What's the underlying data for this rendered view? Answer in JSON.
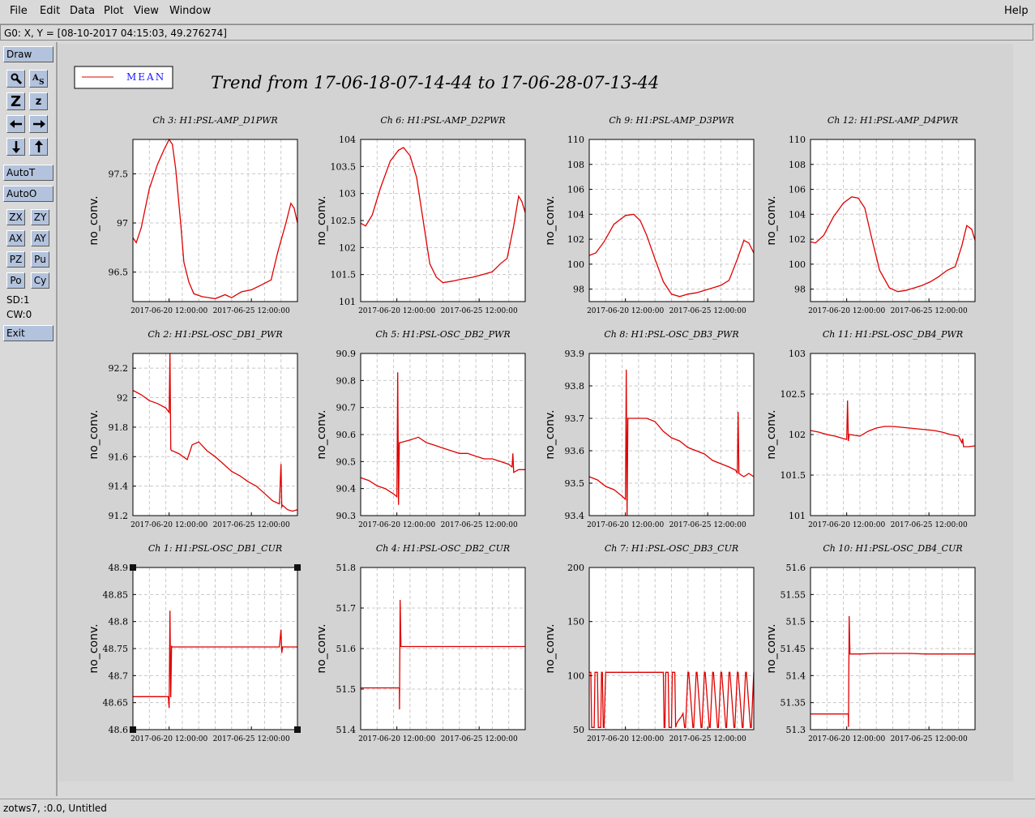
{
  "menu": {
    "file": "File",
    "edit": "Edit",
    "data": "Data",
    "plot": "Plot",
    "view": "View",
    "window": "Window",
    "help": "Help"
  },
  "coord_readout": "G0: X, Y = [08-10-2017 04:15:03, 49.276274]",
  "toolbar": {
    "draw": "Draw",
    "auto_t": "AutoT",
    "auto_o": "AutoO",
    "zx": "ZX",
    "zy": "ZY",
    "ax": "AX",
    "ay": "AY",
    "pz": "PZ",
    "pu": "Pu",
    "po": "Po",
    "cy": "Cy",
    "sd": "SD:1",
    "cw": "CW:0",
    "exit": "Exit",
    "zoom_big": "Z",
    "zoom_small": "z"
  },
  "status": "zotws7, :0.0, Untitled",
  "legend": {
    "label": "MEAN",
    "color": "#e00000"
  },
  "trend_title": "Trend from 17-06-18-07-14-44 to 17-06-28-07-13-44",
  "colors": {
    "series": "#e00000",
    "plot_bg": "#ffffff",
    "panel_bg": "#d3d3d3",
    "grid": "#c8c8c8"
  },
  "chart_data": [
    {
      "type": "line",
      "title": "Ch 3: H1:PSL-AMP_D1PWR",
      "ylabel": "no_conv.",
      "ylim": [
        96.2,
        97.85
      ],
      "yticks": [
        96.5,
        97,
        97.5
      ],
      "ytick_labels": [
        "96.5",
        "97",
        "97.5"
      ],
      "xlim": [
        0,
        10
      ],
      "xtick_labels": [
        "2017-06-20 12:00:00",
        "2017-06-25 12:00:00"
      ],
      "xticks": [
        2.2,
        7.2
      ],
      "grid": true,
      "x": [
        0,
        0.2,
        0.5,
        1.0,
        1.5,
        1.9,
        2.2,
        2.4,
        2.6,
        2.9,
        3.1,
        3.4,
        3.7,
        4.2,
        5.0,
        5.6,
        6.0,
        6.6,
        7.2,
        7.7,
        8.4,
        8.8,
        9.3,
        9.6,
        9.8,
        10
      ],
      "values": [
        96.85,
        96.8,
        96.95,
        97.35,
        97.6,
        97.75,
        97.85,
        97.8,
        97.55,
        97.0,
        96.6,
        96.4,
        96.28,
        96.25,
        96.23,
        96.27,
        96.24,
        96.3,
        96.32,
        96.36,
        96.42,
        96.7,
        97.0,
        97.2,
        97.15,
        97.0
      ]
    },
    {
      "type": "line",
      "title": "Ch 6: H1:PSL-AMP_D2PWR",
      "ylabel": "no_conv.",
      "ylim": [
        101,
        104
      ],
      "yticks": [
        101,
        101.5,
        102,
        102.5,
        103,
        103.5,
        104
      ],
      "ytick_labels": [
        "101",
        "101.5",
        "102",
        "102.5",
        "103",
        "103.5",
        "104"
      ],
      "xlim": [
        0,
        10
      ],
      "xtick_labels": [
        "2017-06-20 12:00:00",
        "2017-06-25 12:00:00"
      ],
      "xticks": [
        2.2,
        7.2
      ],
      "grid": true,
      "x": [
        0,
        0.3,
        0.7,
        1.2,
        1.8,
        2.3,
        2.6,
        3.0,
        3.4,
        3.8,
        4.2,
        4.6,
        5.0,
        5.6,
        6.2,
        6.8,
        7.4,
        8.0,
        8.5,
        8.9,
        9.3,
        9.6,
        9.8,
        10
      ],
      "values": [
        102.45,
        102.4,
        102.6,
        103.1,
        103.6,
        103.8,
        103.85,
        103.7,
        103.3,
        102.5,
        101.7,
        101.45,
        101.35,
        101.38,
        101.42,
        101.45,
        101.5,
        101.55,
        101.7,
        101.8,
        102.4,
        102.95,
        102.85,
        102.65
      ]
    },
    {
      "type": "line",
      "title": "Ch 9: H1:PSL-AMP_D3PWR",
      "ylabel": "no_conv.",
      "ylim": [
        97,
        110
      ],
      "yticks": [
        98,
        100,
        102,
        104,
        106,
        108,
        110
      ],
      "ytick_labels": [
        "98",
        "100",
        "102",
        "104",
        "106",
        "108",
        "110"
      ],
      "xlim": [
        0,
        10
      ],
      "xtick_labels": [
        "2017-06-20 12:00:00",
        "2017-06-25 12:00:00"
      ],
      "xticks": [
        2.2,
        7.2
      ],
      "grid": true,
      "x": [
        0,
        0.4,
        0.9,
        1.5,
        2.2,
        2.7,
        3.1,
        3.5,
        4.0,
        4.5,
        5.0,
        5.5,
        6.0,
        6.5,
        7.0,
        7.5,
        8.0,
        8.5,
        9.0,
        9.4,
        9.7,
        10
      ],
      "values": [
        100.7,
        100.9,
        101.8,
        103.2,
        103.9,
        104.0,
        103.5,
        102.3,
        100.4,
        98.6,
        97.6,
        97.4,
        97.6,
        97.7,
        97.9,
        98.1,
        98.3,
        98.7,
        100.4,
        101.9,
        101.7,
        100.9
      ]
    },
    {
      "type": "line",
      "title": "Ch 12: H1:PSL-AMP_D4PWR",
      "ylabel": "no_conv.",
      "ylim": [
        97,
        110
      ],
      "yticks": [
        98,
        100,
        102,
        104,
        106,
        108,
        110
      ],
      "ytick_labels": [
        "98",
        "100",
        "102",
        "104",
        "106",
        "108",
        "110"
      ],
      "xlim": [
        0,
        10
      ],
      "xtick_labels": [
        "2017-06-20 12:00:00",
        "2017-06-25 12:00:00"
      ],
      "xticks": [
        2.2,
        7.2
      ],
      "grid": true,
      "x": [
        0,
        0.3,
        0.8,
        1.4,
        2.0,
        2.5,
        2.9,
        3.3,
        3.7,
        4.2,
        4.8,
        5.3,
        5.8,
        6.3,
        6.8,
        7.3,
        7.8,
        8.3,
        8.8,
        9.2,
        9.5,
        9.8,
        10
      ],
      "values": [
        101.8,
        101.7,
        102.3,
        103.8,
        104.9,
        105.4,
        105.3,
        104.5,
        102.2,
        99.5,
        98.1,
        97.8,
        97.9,
        98.1,
        98.3,
        98.6,
        99.0,
        99.5,
        99.8,
        101.5,
        103.1,
        102.8,
        101.9
      ]
    },
    {
      "type": "line",
      "title": "Ch 2: H1:PSL-OSC_DB1_PWR",
      "ylabel": "no_conv.",
      "ylim": [
        91.2,
        92.3
      ],
      "yticks": [
        91.2,
        91.4,
        91.6,
        91.8,
        92,
        92.2
      ],
      "ytick_labels": [
        "91.2",
        "91.4",
        "91.6",
        "91.8",
        "92",
        "92.2"
      ],
      "xlim": [
        0,
        10
      ],
      "xtick_labels": [
        "2017-06-20 12:00:00",
        "2017-06-25 12:00:00"
      ],
      "xticks": [
        2.2,
        7.2
      ],
      "grid": true,
      "x": [
        0,
        0.5,
        1.0,
        1.5,
        2.0,
        2.2,
        2.25,
        2.3,
        2.35,
        2.4,
        2.8,
        3.3,
        3.6,
        4.0,
        4.5,
        5.0,
        5.5,
        6.0,
        6.5,
        7.0,
        7.5,
        8.0,
        8.5,
        8.9,
        9.0,
        9.05,
        9.1,
        9.4,
        9.7,
        10
      ],
      "values": [
        92.05,
        92.02,
        91.98,
        91.96,
        91.93,
        91.9,
        92.3,
        91.65,
        91.64,
        91.64,
        91.62,
        91.58,
        91.68,
        91.7,
        91.64,
        91.6,
        91.55,
        91.5,
        91.47,
        91.43,
        91.4,
        91.35,
        91.3,
        91.28,
        91.55,
        91.26,
        91.27,
        91.24,
        91.23,
        91.24
      ]
    },
    {
      "type": "line",
      "title": "Ch 5: H1:PSL-OSC_DB2_PWR",
      "ylabel": "no_conv.",
      "ylim": [
        90.3,
        90.9
      ],
      "yticks": [
        90.3,
        90.4,
        90.5,
        90.6,
        90.7,
        90.8,
        90.9
      ],
      "ytick_labels": [
        "90.3",
        "90.4",
        "90.5",
        "90.6",
        "90.7",
        "90.8",
        "90.9"
      ],
      "xlim": [
        0,
        10
      ],
      "xtick_labels": [
        "2017-06-20 12:00:00",
        "2017-06-25 12:00:00"
      ],
      "xticks": [
        2.2,
        7.2
      ],
      "grid": true,
      "x": [
        0,
        0.5,
        1.0,
        1.5,
        2.0,
        2.2,
        2.25,
        2.3,
        2.35,
        2.4,
        3.0,
        3.5,
        4.0,
        4.5,
        5.0,
        5.5,
        6.0,
        6.5,
        7.0,
        7.5,
        8.0,
        8.5,
        9.0,
        9.2,
        9.25,
        9.3,
        9.6,
        10
      ],
      "values": [
        90.44,
        90.43,
        90.41,
        90.4,
        90.38,
        90.37,
        90.83,
        90.34,
        90.57,
        90.57,
        90.58,
        90.59,
        90.57,
        90.56,
        90.55,
        90.54,
        90.53,
        90.53,
        90.52,
        90.51,
        90.51,
        90.5,
        90.49,
        90.48,
        90.53,
        90.46,
        90.47,
        90.47
      ]
    },
    {
      "type": "line",
      "title": "Ch 8: H1:PSL-OSC_DB3_PWR",
      "ylabel": "no_conv.",
      "ylim": [
        93.4,
        93.9
      ],
      "yticks": [
        93.4,
        93.5,
        93.6,
        93.7,
        93.8,
        93.9
      ],
      "ytick_labels": [
        "93.4",
        "93.5",
        "93.6",
        "93.7",
        "93.8",
        "93.9"
      ],
      "xlim": [
        0,
        10
      ],
      "xtick_labels": [
        "2017-06-20 12:00:00",
        "2017-06-25 12:00:00"
      ],
      "xticks": [
        2.2,
        7.2
      ],
      "grid": true,
      "x": [
        0,
        0.5,
        1.0,
        1.5,
        2.0,
        2.2,
        2.25,
        2.3,
        2.35,
        2.4,
        3.0,
        3.5,
        4.0,
        4.5,
        5.0,
        5.5,
        6.0,
        6.5,
        7.0,
        7.5,
        8.0,
        8.5,
        8.9,
        9.0,
        9.05,
        9.1,
        9.4,
        9.7,
        10
      ],
      "values": [
        93.52,
        93.51,
        93.49,
        93.48,
        93.46,
        93.45,
        93.85,
        93.4,
        93.7,
        93.7,
        93.7,
        93.7,
        93.69,
        93.66,
        93.64,
        93.63,
        93.61,
        93.6,
        93.59,
        93.57,
        93.56,
        93.55,
        93.54,
        93.53,
        93.72,
        93.53,
        93.52,
        93.53,
        93.52
      ]
    },
    {
      "type": "line",
      "title": "Ch 11: H1:PSL-OSC_DB4_PWR",
      "ylabel": "no_conv.",
      "ylim": [
        101,
        103
      ],
      "yticks": [
        101,
        101.5,
        102,
        102.5,
        103
      ],
      "ytick_labels": [
        "101",
        "101.5",
        "102",
        "102.5",
        "103"
      ],
      "xlim": [
        0,
        10
      ],
      "xtick_labels": [
        "2017-06-20 12:00:00",
        "2017-06-25 12:00:00"
      ],
      "xticks": [
        2.2,
        7.2
      ],
      "grid": true,
      "x": [
        0,
        0.5,
        1.0,
        1.5,
        2.0,
        2.2,
        2.25,
        2.3,
        2.35,
        2.4,
        3.0,
        3.5,
        4.0,
        4.5,
        5.0,
        5.5,
        6.0,
        6.5,
        7.0,
        7.5,
        8.0,
        8.5,
        9.0,
        9.2,
        9.25,
        9.3,
        9.6,
        10
      ],
      "values": [
        102.05,
        102.03,
        102.0,
        101.98,
        101.95,
        101.94,
        102.42,
        101.92,
        102.0,
        102.0,
        101.98,
        102.04,
        102.08,
        102.1,
        102.1,
        102.09,
        102.08,
        102.07,
        102.06,
        102.05,
        102.03,
        102.0,
        101.98,
        101.9,
        101.95,
        101.85,
        101.85,
        101.86
      ]
    },
    {
      "type": "line",
      "title": "Ch 1: H1:PSL-OSC_DB1_CUR",
      "ylabel": "no_conv.",
      "ylim": [
        48.6,
        48.9
      ],
      "yticks": [
        48.6,
        48.65,
        48.7,
        48.75,
        48.8,
        48.85,
        48.9
      ],
      "ytick_labels": [
        "48.6",
        "48.65",
        "48.7",
        "48.75",
        "48.8",
        "48.85",
        "48.9"
      ],
      "xlim": [
        0,
        10
      ],
      "xtick_labels": [
        "2017-06-20 12:00:00",
        "2017-06-25 12:00:00"
      ],
      "xticks": [
        2.2,
        7.2
      ],
      "grid": true,
      "x": [
        0,
        1.0,
        2.0,
        2.15,
        2.2,
        2.25,
        2.3,
        2.35,
        2.4,
        3.0,
        4.0,
        5.0,
        6.0,
        7.0,
        8.0,
        8.9,
        9.0,
        9.05,
        9.1,
        10
      ],
      "values": [
        48.661,
        48.661,
        48.661,
        48.661,
        48.64,
        48.82,
        48.66,
        48.754,
        48.753,
        48.753,
        48.753,
        48.753,
        48.753,
        48.753,
        48.753,
        48.753,
        48.785,
        48.742,
        48.753,
        48.753
      ]
    },
    {
      "type": "line",
      "title": "Ch 4: H1:PSL-OSC_DB2_CUR",
      "ylabel": "no_conv.",
      "ylim": [
        51.4,
        51.8
      ],
      "yticks": [
        51.4,
        51.5,
        51.6,
        51.7,
        51.8
      ],
      "ytick_labels": [
        "51.4",
        "51.5",
        "51.6",
        "51.7",
        "51.8"
      ],
      "xlim": [
        0,
        10
      ],
      "xtick_labels": [
        "2017-06-20 12:00:00",
        "2017-06-25 12:00:00"
      ],
      "xticks": [
        2.2,
        7.2
      ],
      "grid": true,
      "x": [
        0,
        1.0,
        2.0,
        2.35,
        2.36,
        2.4,
        2.45,
        3.0,
        4.0,
        5.0,
        6.0,
        7.0,
        8.0,
        9.0,
        10
      ],
      "values": [
        51.503,
        51.503,
        51.503,
        51.503,
        51.45,
        51.72,
        51.605,
        51.605,
        51.605,
        51.605,
        51.605,
        51.605,
        51.605,
        51.605,
        51.605
      ]
    },
    {
      "type": "line",
      "title": "Ch 7: H1:PSL-OSC_DB3_CUR",
      "ylabel": "no_conv.",
      "ylim": [
        50,
        200
      ],
      "yticks": [
        50,
        100,
        150,
        200
      ],
      "ytick_labels": [
        "50",
        "100",
        "150",
        "200"
      ],
      "xlim": [
        0,
        10
      ],
      "xtick_labels": [
        "2017-06-20 12:00:00",
        "2017-06-25 12:00:00"
      ],
      "xticks": [
        2.2,
        7.2
      ],
      "grid": true,
      "x": [
        0,
        0.1,
        0.15,
        0.3,
        0.35,
        0.5,
        0.55,
        0.7,
        0.75,
        0.8,
        0.85,
        0.9,
        1.0,
        1.05,
        2.0,
        3.0,
        4.0,
        4.5,
        4.55,
        4.6,
        4.65,
        4.8,
        4.85,
        5.0,
        5.05,
        5.2,
        5.25,
        5.3,
        5.4,
        5.5,
        5.6,
        5.7,
        5.8,
        5.85,
        6.0,
        6.05,
        6.3,
        6.35,
        6.5,
        6.55,
        6.8,
        6.85,
        7.0,
        7.05,
        7.3,
        7.35,
        7.5,
        7.55,
        7.8,
        7.85,
        8.0,
        8.05,
        8.3,
        8.35,
        8.5,
        8.55,
        8.8,
        8.85,
        9.0,
        9.05,
        9.3,
        9.35,
        9.5,
        9.55,
        9.8,
        9.85,
        10
      ],
      "values": [
        103,
        103,
        52,
        52,
        103,
        103,
        52,
        52,
        103,
        103,
        52,
        52,
        103,
        103,
        103,
        103,
        103,
        103,
        52,
        52,
        103,
        103,
        52,
        52,
        103,
        103,
        52,
        55,
        58,
        60,
        62,
        65,
        52,
        52,
        103,
        103,
        52,
        52,
        103,
        103,
        52,
        52,
        103,
        103,
        52,
        52,
        103,
        103,
        52,
        52,
        103,
        103,
        52,
        52,
        103,
        103,
        52,
        52,
        103,
        103,
        52,
        52,
        103,
        103,
        52,
        52,
        103
      ]
    },
    {
      "type": "line",
      "title": "Ch 10: H1:PSL-OSC_DB4_CUR",
      "ylabel": "no_conv.",
      "ylim": [
        51.3,
        51.6
      ],
      "yticks": [
        51.3,
        51.35,
        51.4,
        51.45,
        51.5,
        51.55,
        51.6
      ],
      "ytick_labels": [
        "51.3",
        "51.35",
        "51.4",
        "51.45",
        "51.5",
        "51.55",
        "51.6"
      ],
      "xlim": [
        0,
        10
      ],
      "xtick_labels": [
        "2017-06-20 12:00:00",
        "2017-06-25 12:00:00"
      ],
      "xticks": [
        2.2,
        7.2
      ],
      "grid": true,
      "x": [
        0,
        1.0,
        2.0,
        2.3,
        2.31,
        2.35,
        2.4,
        2.45,
        3.0,
        4.0,
        5.0,
        6.0,
        7.0,
        8.0,
        9.0,
        10
      ],
      "values": [
        51.329,
        51.329,
        51.329,
        51.329,
        51.305,
        51.51,
        51.44,
        51.44,
        51.44,
        51.441,
        51.441,
        51.441,
        51.44,
        51.44,
        51.44,
        51.44
      ]
    }
  ]
}
